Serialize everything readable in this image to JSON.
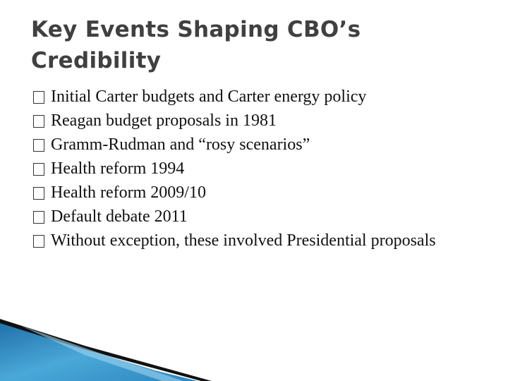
{
  "title": "Key Events Shaping CBO’s Credibility",
  "bullets": [
    "Initial Carter budgets and Carter energy policy",
    "Reagan budget proposals in 1981",
    "Gramm-Rudman and “rosy scenarios”",
    "Health reform 1994",
    "Health reform 2009/10",
    "Default debate 2011",
    "Without exception, these involved Presidential proposals"
  ]
}
